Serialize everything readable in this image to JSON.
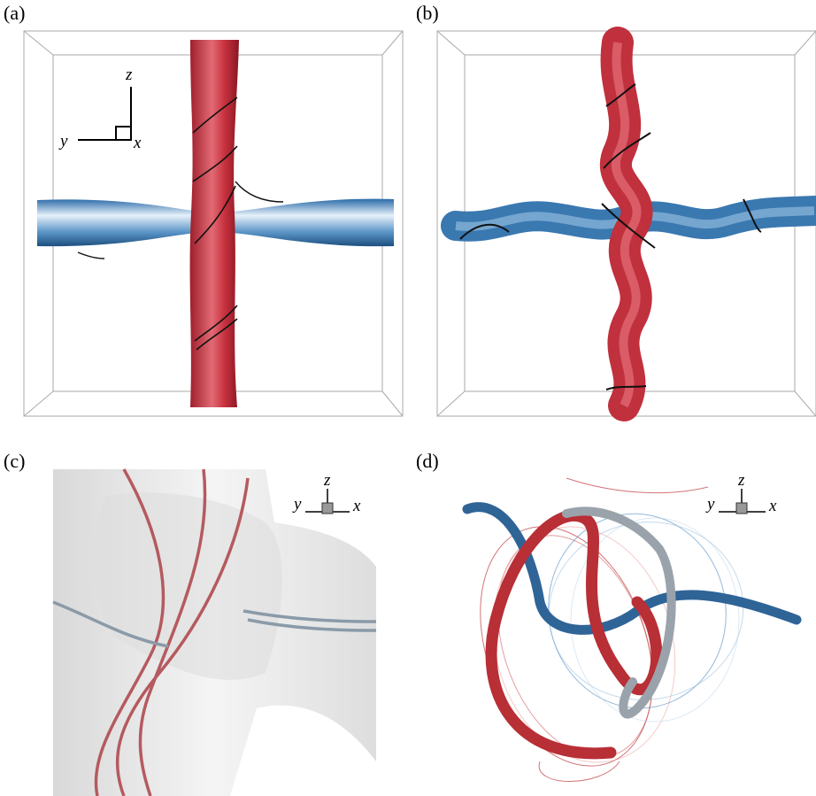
{
  "panels": [
    {
      "label": "(a)",
      "axes": {
        "z": "z",
        "y": "y",
        "x": "x"
      }
    },
    {
      "label": "(b)"
    },
    {
      "label": "(c)",
      "axes": {
        "z": "z",
        "y": "y",
        "x": "x"
      }
    },
    {
      "label": "(d)",
      "axes": {
        "z": "z",
        "y": "y",
        "x": "x"
      }
    }
  ]
}
